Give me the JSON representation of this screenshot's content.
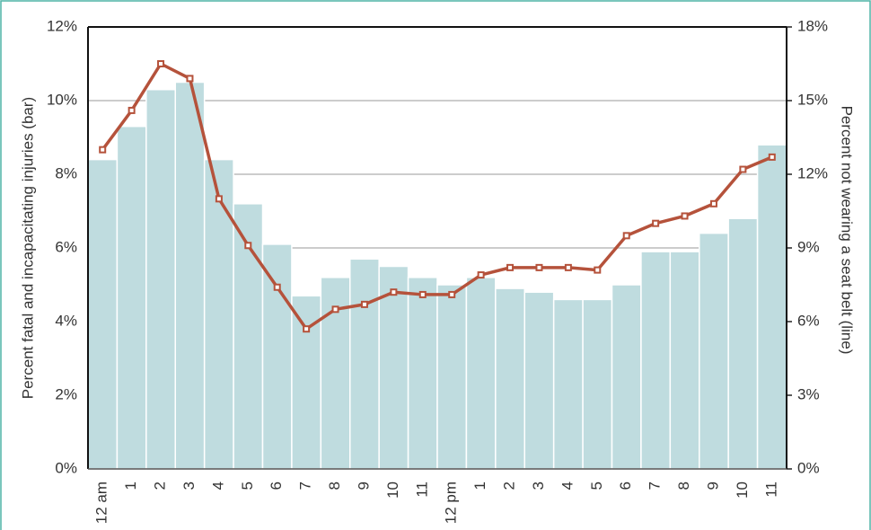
{
  "chart_data": {
    "type": "bar_line",
    "y_label": "Percent fatal and incapacitating injuries (bar)",
    "y2_label": "Percent not wearing a seat belt (line)",
    "categories": [
      "12 am",
      "1",
      "2",
      "3",
      "4",
      "5",
      "6",
      "7",
      "8",
      "9",
      "10",
      "11",
      "12 pm",
      "1",
      "2",
      "3",
      "4",
      "5",
      "6",
      "7",
      "8",
      "9",
      "10",
      "11"
    ],
    "series": [
      {
        "name": "Percent fatal and incapacitating injuries",
        "type": "bar",
        "color": "#bfdcdf",
        "axis": "y",
        "values": [
          8.4,
          9.3,
          10.3,
          10.5,
          8.4,
          7.2,
          6.1,
          4.7,
          5.2,
          5.7,
          5.5,
          5.2,
          5.0,
          5.2,
          4.9,
          4.8,
          4.6,
          4.6,
          5.0,
          5.9,
          5.9,
          6.4,
          6.8,
          8.8
        ]
      },
      {
        "name": "Percent not wearing a seat belt",
        "type": "line",
        "color": "#b5523b",
        "axis": "y2",
        "values": [
          13.0,
          14.6,
          16.5,
          15.9,
          11.0,
          9.1,
          7.4,
          5.7,
          6.5,
          6.7,
          7.2,
          7.1,
          7.1,
          7.9,
          8.2,
          8.2,
          8.2,
          8.1,
          9.5,
          10.0,
          10.3,
          10.8,
          12.2,
          12.7
        ]
      }
    ],
    "ylim": [
      0,
      12
    ],
    "yticks": [
      {
        "value": 0,
        "label": "0%"
      },
      {
        "value": 2,
        "label": "2%"
      },
      {
        "value": 4,
        "label": "4%"
      },
      {
        "value": 6,
        "label": "6%"
      },
      {
        "value": 8,
        "label": "8%"
      },
      {
        "value": 10,
        "label": "10%"
      },
      {
        "value": 12,
        "label": "12%"
      }
    ],
    "y2lim": [
      0,
      18
    ],
    "y2ticks": [
      {
        "value": 0,
        "label": "0%"
      },
      {
        "value": 3,
        "label": "3%"
      },
      {
        "value": 6,
        "label": "6%"
      },
      {
        "value": 9,
        "label": "9%"
      },
      {
        "value": 12,
        "label": "12%"
      },
      {
        "value": 15,
        "label": "15%"
      },
      {
        "value": 18,
        "label": "18%"
      }
    ],
    "grid": true
  }
}
